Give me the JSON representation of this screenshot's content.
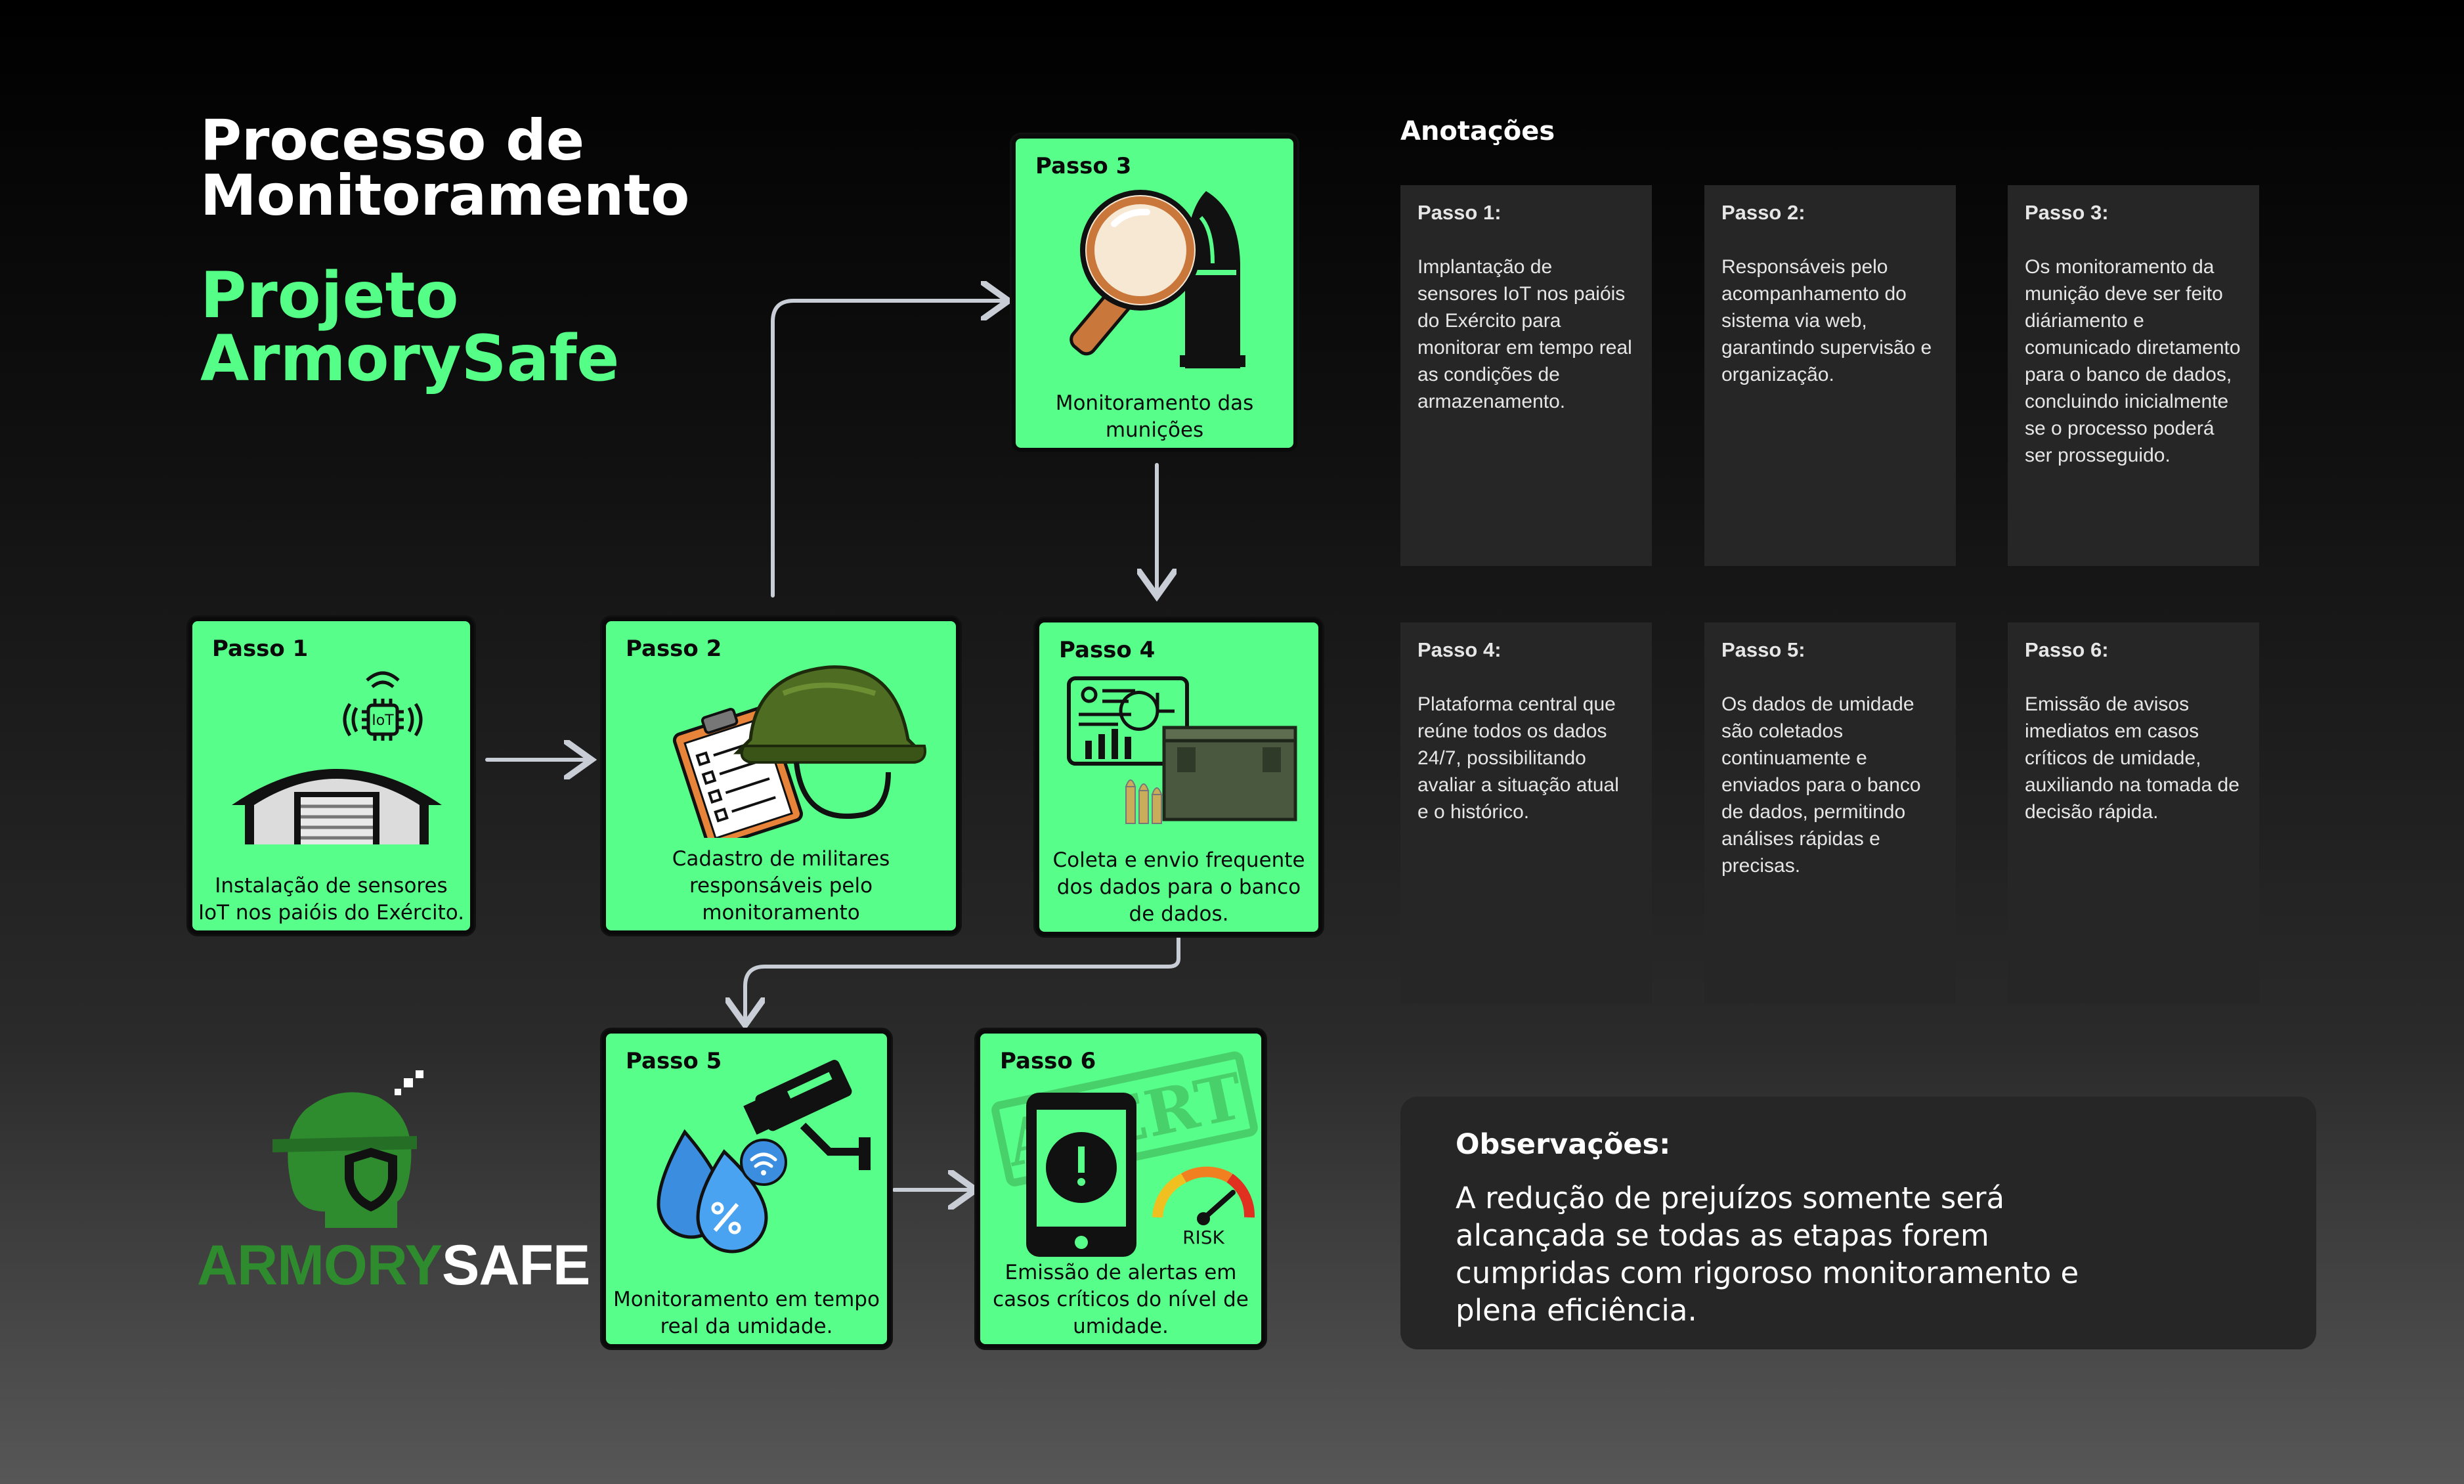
{
  "header": {
    "title": "Processo de Monitoramento",
    "project": "Projeto ArmorySafe"
  },
  "steps": [
    {
      "label": "Passo 1",
      "caption": "Instalação de sensores IoT nos paióis do Exército.",
      "icon": "warehouse-iot-icon",
      "chip_text": "IoT"
    },
    {
      "label": "Passo 2",
      "caption": "Cadastro de militares responsáveis pelo monitoramento",
      "icon": "helmet-clipboard-icon"
    },
    {
      "label": "Passo 3",
      "caption": "Monitoramento das munições",
      "icon": "magnifier-bullet-icon"
    },
    {
      "label": "Passo 4",
      "caption": "Coleta e envio frequente dos dados para o banco de dados.",
      "icon": "dashboard-ammo-box-icon"
    },
    {
      "label": "Passo 5",
      "caption": "Monitoramento em tempo real da umidade.",
      "icon": "camera-humidity-icon"
    },
    {
      "label": "Passo 6",
      "caption": "Emissão de alertas em casos críticos do nível de umidade.",
      "icon": "phone-alert-gauge-icon",
      "stamp_text": "ALERT",
      "gauge_text": "RISK"
    }
  ],
  "annotations": {
    "title": "Anotações",
    "notes": [
      {
        "title": "Passo 1:",
        "body": "Implantação de sensores IoT nos paióis do Exército para monitorar em tempo real as condições de armazenamento."
      },
      {
        "title": "Passo 2:",
        "body": "Responsáveis pelo acompanhamento do sistema via web, garantindo supervisão e organização."
      },
      {
        "title": "Passo 3:",
        "body": "Os monitoramento da munição deve ser feito diáriamento e comunicado diretamento para o banco de dados, concluindo inicialmente se o processo poderá ser prosseguido."
      },
      {
        "title": "Passo 4:",
        "body": "Plataforma central que reúne todos os dados 24/7, possibilitando avaliar a situação atual e o histórico."
      },
      {
        "title": "Passo 5:",
        "body": "Os dados de umidade são coletados continuamente e enviados para o banco de dados, permitindo análises rápidas e precisas."
      },
      {
        "title": "Passo 6:",
        "body": "Emissão de avisos imediatos em casos críticos de umidade, auxiliando na tomada de decisão rápida."
      }
    ]
  },
  "observations": {
    "title": "Observações:",
    "body": "A redução de prejuízos somente será alcançada se todas as etapas forem cumpridas com rigoroso monitoramento e plena eficiência."
  },
  "logo": {
    "part1": "ARMORY",
    "part2": "SAFE",
    "icon": "soldier-shield-logo-icon"
  },
  "colors": {
    "accent": "#55ff87",
    "card": "#57ff8a",
    "logo_green": "#2e8b2e",
    "note_bg": "#262626"
  }
}
